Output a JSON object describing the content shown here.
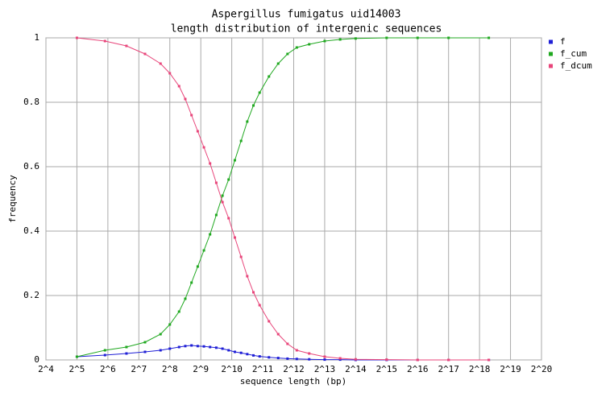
{
  "chart_data": {
    "type": "line",
    "title": "Aspergillus fumigatus uid14003",
    "subtitle": "length distribution of intergenic sequences",
    "x_label": "sequence length (bp)",
    "y_label": "frequency",
    "x_scale": "log2",
    "grid": true,
    "legend": "right",
    "xlim": [
      16,
      1048576
    ],
    "ylim": [
      0,
      1
    ],
    "xticks": [
      {
        "value": 16,
        "label": "2^4"
      },
      {
        "value": 32,
        "label": "2^5"
      },
      {
        "value": 64,
        "label": "2^6"
      },
      {
        "value": 128,
        "label": "2^7"
      },
      {
        "value": 256,
        "label": "2^8"
      },
      {
        "value": 512,
        "label": "2^9"
      },
      {
        "value": 1024,
        "label": "2^10"
      },
      {
        "value": 2048,
        "label": "2^11"
      },
      {
        "value": 4096,
        "label": "2^12"
      },
      {
        "value": 8192,
        "label": "2^13"
      },
      {
        "value": 16384,
        "label": "2^14"
      },
      {
        "value": 32768,
        "label": "2^15"
      },
      {
        "value": 65536,
        "label": "2^16"
      },
      {
        "value": 131072,
        "label": "2^17"
      },
      {
        "value": 262144,
        "label": "2^18"
      },
      {
        "value": 524288,
        "label": "2^19"
      },
      {
        "value": 1048576,
        "label": "2^20"
      }
    ],
    "yticks": [
      0,
      0.2,
      0.4,
      0.6,
      0.8,
      1
    ],
    "x": [
      32,
      60,
      97,
      147,
      208,
      256,
      315,
      362,
      416,
      478,
      549,
      630,
      724,
      832,
      955,
      1097,
      1261,
      1448,
      1663,
      1911,
      2353,
      2896,
      3566,
      4390,
      5793,
      8192,
      11585,
      16384,
      32768,
      65536,
      131072,
      322639
    ],
    "series": [
      {
        "name": "f",
        "color": "#1f1fd6",
        "values": [
          0.01,
          0.015,
          0.02,
          0.025,
          0.03,
          0.035,
          0.04,
          0.043,
          0.045,
          0.043,
          0.042,
          0.04,
          0.038,
          0.035,
          0.03,
          0.025,
          0.022,
          0.018,
          0.014,
          0.011,
          0.008,
          0.006,
          0.004,
          0.003,
          0.002,
          0.001,
          0.001,
          0,
          0,
          0,
          0,
          0
        ]
      },
      {
        "name": "f_cum",
        "color": "#1fa81f",
        "values": [
          0.01,
          0.03,
          0.04,
          0.055,
          0.08,
          0.11,
          0.15,
          0.19,
          0.24,
          0.29,
          0.34,
          0.39,
          0.45,
          0.51,
          0.56,
          0.62,
          0.68,
          0.74,
          0.79,
          0.83,
          0.88,
          0.92,
          0.95,
          0.97,
          0.98,
          0.99,
          0.995,
          0.998,
          1,
          1,
          1,
          1
        ]
      },
      {
        "name": "f_dcum",
        "color": "#e8457a",
        "values": [
          1,
          0.99,
          0.975,
          0.95,
          0.92,
          0.89,
          0.85,
          0.81,
          0.76,
          0.71,
          0.66,
          0.61,
          0.55,
          0.49,
          0.44,
          0.38,
          0.32,
          0.26,
          0.21,
          0.17,
          0.12,
          0.08,
          0.05,
          0.03,
          0.02,
          0.01,
          0.005,
          0.002,
          0.001,
          0,
          0,
          0
        ]
      }
    ]
  }
}
